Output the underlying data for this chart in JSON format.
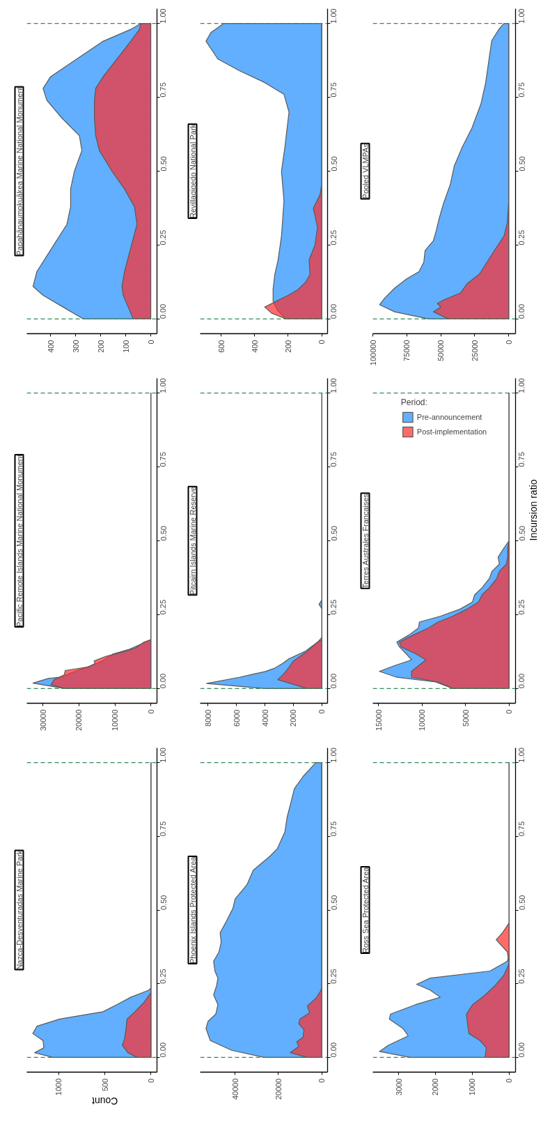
{
  "chart_data": [
    {
      "type": "area",
      "title": "Papahānaumokuākea Marine National Monument",
      "orientation": "horizontal",
      "xlim": [
        495,
        -25
      ],
      "xticks": [
        0,
        100,
        200,
        300,
        400
      ],
      "ylim": [
        -0.05,
        1.05
      ],
      "yticks": [
        {
          "value": 0,
          "label": "0.00"
        },
        {
          "value": 0.25,
          "label": "0.25"
        },
        {
          "value": 0.5,
          "label": "0.50"
        },
        {
          "value": 0.75,
          "label": "0.75"
        },
        {
          "value": 1,
          "label": "1.00"
        }
      ],
      "ref_lines": [
        {
          "axis": "y",
          "value": 0,
          "color": "#2e8b57",
          "line_style": "dashed"
        },
        {
          "axis": "y",
          "value": 1,
          "color": "#2e8b57",
          "line_style": "dashed"
        }
      ],
      "series": [
        {
          "color": "#61affe",
          "x": [
            0,
            0.04,
            0.08,
            0.11,
            0.16,
            0.24,
            0.32,
            0.38,
            0.44,
            0.5,
            0.57,
            0.62,
            0.68,
            0.74,
            0.78,
            0.82,
            0.88,
            0.94,
            0.98,
            1.0
          ],
          "values": [
            270,
            350,
            430,
            470,
            455,
            395,
            335,
            320,
            320,
            305,
            275,
            285,
            355,
            415,
            430,
            400,
            295,
            190,
            80,
            40
          ]
        },
        {
          "color": "#ff2c2c",
          "x": [
            0,
            0.04,
            0.08,
            0.11,
            0.16,
            0.24,
            0.32,
            0.38,
            0.44,
            0.5,
            0.57,
            0.62,
            0.68,
            0.74,
            0.78,
            0.82,
            0.88,
            0.94,
            0.98,
            1.0
          ],
          "values": [
            70,
            90,
            110,
            115,
            105,
            80,
            55,
            65,
            105,
            155,
            205,
            220,
            225,
            225,
            220,
            190,
            135,
            80,
            45,
            40
          ]
        }
      ]
    },
    {
      "type": "area",
      "title": "Revillagigedo National Park",
      "orientation": "horizontal",
      "xlim": [
        725,
        -35
      ],
      "xticks": [
        0,
        200,
        400,
        600
      ],
      "ylim": [
        -0.05,
        1.05
      ],
      "yticks": [
        {
          "value": 0,
          "label": "0.00"
        },
        {
          "value": 0.25,
          "label": "0.25"
        },
        {
          "value": 0.5,
          "label": "0.50"
        },
        {
          "value": 0.75,
          "label": "0.75"
        },
        {
          "value": 1,
          "label": "1.00"
        }
      ],
      "ref_lines": [
        {
          "axis": "y",
          "value": 0,
          "color": "#2e8b57",
          "line_style": "dashed"
        },
        {
          "axis": "y",
          "value": 1,
          "color": "#2e8b57",
          "line_style": "dashed"
        }
      ],
      "series": [
        {
          "color": "#61affe",
          "x": [
            0,
            0.03,
            0.06,
            0.1,
            0.15,
            0.2,
            0.28,
            0.4,
            0.5,
            0.58,
            0.7,
            0.76,
            0.8,
            0.84,
            0.88,
            0.94,
            0.97,
            1.0
          ],
          "values": [
            215,
            265,
            290,
            290,
            280,
            260,
            240,
            225,
            240,
            220,
            195,
            225,
            340,
            490,
            620,
            690,
            660,
            585
          ]
        },
        {
          "color": "#ff2c2c",
          "x": [
            0,
            0.02,
            0.04,
            0.06,
            0.08,
            0.1,
            0.125,
            0.15,
            0.2,
            0.25,
            0.31,
            0.375,
            0.42,
            0.455,
            1.0
          ],
          "values": [
            215,
            300,
            340,
            270,
            200,
            140,
            95,
            70,
            75,
            40,
            25,
            50,
            10,
            0,
            0
          ]
        }
      ]
    },
    {
      "type": "area",
      "title": "Pooled VLMPAs",
      "orientation": "horizontal",
      "xlim": [
        100000,
        -5000
      ],
      "xticks": [
        0,
        25000,
        50000,
        75000,
        100000
      ],
      "ylim": [
        -0.05,
        1.05
      ],
      "yticks": [
        {
          "value": 0,
          "label": "0.00"
        },
        {
          "value": 0.25,
          "label": "0.25"
        },
        {
          "value": 0.5,
          "label": "0.50"
        },
        {
          "value": 0.75,
          "label": "0.75"
        },
        {
          "value": 1,
          "label": "1.00"
        }
      ],
      "ref_lines": [
        {
          "axis": "y",
          "value": 0,
          "color": "#2e8b57",
          "line_style": "dashed"
        },
        {
          "axis": "y",
          "value": 1,
          "color": "#2e8b57",
          "line_style": "dashed"
        }
      ],
      "series": [
        {
          "color": "#61affe",
          "x": [
            0,
            0.024,
            0.048,
            0.072,
            0.104,
            0.136,
            0.16,
            0.192,
            0.232,
            0.264,
            0.296,
            0.343,
            0.391,
            0.455,
            0.519,
            0.583,
            0.647,
            0.727,
            0.799,
            0.879,
            0.942,
            0.982,
            1.0
          ],
          "values": [
            59000,
            84000,
            95000,
            91000,
            84000,
            75000,
            66000,
            62500,
            61500,
            55500,
            53500,
            51000,
            48000,
            43000,
            40000,
            34000,
            27000,
            20500,
            17000,
            14500,
            12500,
            7000,
            3500
          ]
        },
        {
          "color": "#ff2c2c",
          "x": [
            0,
            0.024,
            0.04,
            0.052,
            0.064,
            0.088,
            0.12,
            0.152,
            0.192,
            0.232,
            0.28,
            0.327,
            0.4,
            1.0
          ],
          "values": [
            44500,
            55500,
            50000,
            52500,
            48000,
            35500,
            30500,
            21500,
            16000,
            10500,
            3500,
            1000,
            0,
            0
          ]
        }
      ]
    },
    {
      "type": "area",
      "title": "Pacific Remote Islands Marine National Monument",
      "orientation": "horizontal",
      "xlim": [
        34500,
        -1700
      ],
      "xticks": [
        0,
        10000,
        20000,
        30000
      ],
      "ylim": [
        -0.05,
        1.05
      ],
      "yticks": [
        {
          "value": 0,
          "label": "0.00"
        },
        {
          "value": 0.25,
          "label": "0.25"
        },
        {
          "value": 0.5,
          "label": "0.50"
        },
        {
          "value": 0.75,
          "label": "0.75"
        },
        {
          "value": 1,
          "label": "1.00"
        }
      ],
      "ref_lines": [
        {
          "axis": "y",
          "value": 0,
          "color": "#2e8b57",
          "line_style": "dashed"
        },
        {
          "axis": "y",
          "value": 1,
          "color": "#2e8b57",
          "line_style": "dashed"
        }
      ],
      "series": [
        {
          "color": "#61affe",
          "x": [
            0,
            0.018,
            0.034,
            0.038,
            0.054,
            0.069,
            0.085,
            0.093,
            0.117,
            0.133,
            0.149,
            0.165,
            1.0
          ],
          "values": [
            24000,
            32800,
            28500,
            25000,
            22000,
            18500,
            15000,
            13500,
            10500,
            6000,
            3000,
            0,
            0
          ]
        },
        {
          "color": "#ff2c2c",
          "x": [
            0,
            0.013,
            0.03,
            0.046,
            0.061,
            0.073,
            0.085,
            0.093,
            0.109,
            0.125,
            0.137,
            0.157,
            0.165,
            1.0
          ],
          "values": [
            24000,
            27800,
            26900,
            24100,
            23800,
            17300,
            15500,
            15800,
            12400,
            7400,
            4300,
            1900,
            0,
            0
          ]
        }
      ]
    },
    {
      "type": "area",
      "title": "Pitcairn Islands Marine Reserve",
      "orientation": "horizontal",
      "xlim": [
        8550,
        -400
      ],
      "xticks": [
        0,
        2000,
        4000,
        6000,
        8000
      ],
      "ylim": [
        -0.05,
        1.05
      ],
      "yticks": [
        {
          "value": 0,
          "label": "0.00"
        },
        {
          "value": 0.25,
          "label": "0.25"
        },
        {
          "value": 0.5,
          "label": "0.50"
        },
        {
          "value": 0.75,
          "label": "0.75"
        },
        {
          "value": 1,
          "label": "1.00"
        }
      ],
      "ref_lines": [
        {
          "axis": "y",
          "value": 0,
          "color": "#2e8b57",
          "line_style": "dashed"
        },
        {
          "axis": "y",
          "value": 1,
          "color": "#2e8b57",
          "line_style": "dashed"
        }
      ],
      "series": [
        {
          "color": "#61affe",
          "x": [
            0,
            0.017,
            0.038,
            0.049,
            0.057,
            0.069,
            0.085,
            0.101,
            0.125,
            0.157,
            0.173,
            0.27,
            0.285,
            0.3,
            1.0
          ],
          "values": [
            4000,
            8100,
            5800,
            4800,
            4000,
            3300,
            2750,
            2300,
            1200,
            300,
            0,
            0,
            200,
            0,
            0
          ]
        },
        {
          "color": "#ff2c2c",
          "x": [
            0,
            0.03,
            0.046,
            0.054,
            0.069,
            0.093,
            0.125,
            0.157,
            0.165,
            1.0
          ],
          "values": [
            1050,
            3100,
            2750,
            2600,
            2350,
            2000,
            1050,
            300,
            0,
            0
          ]
        }
      ]
    },
    {
      "type": "area",
      "title": "Terres Australes Françaises",
      "orientation": "horizontal",
      "ylabel": "Incursion ratio",
      "legend": "right",
      "legend_title": "Period:",
      "xlim": [
        15650,
        -750
      ],
      "xticks": [
        0,
        5000,
        10000,
        15000
      ],
      "ylim": [
        -0.05,
        1.05
      ],
      "yticks": [
        {
          "value": 0,
          "label": "0.00"
        },
        {
          "value": 0.25,
          "label": "0.25"
        },
        {
          "value": 0.5,
          "label": "0.50"
        },
        {
          "value": 0.75,
          "label": "0.75"
        },
        {
          "value": 1,
          "label": "1.00"
        }
      ],
      "ref_lines": [
        {
          "axis": "y",
          "value": 0,
          "color": "#2e8b57",
          "line_style": "dashed"
        },
        {
          "axis": "y",
          "value": 1,
          "color": "#2e8b57",
          "line_style": "dashed"
        }
      ],
      "series": [
        {
          "name": "Pre-announcement",
          "color": "#61affe",
          "x": [
            0,
            0.022,
            0.038,
            0.058,
            0.077,
            0.097,
            0.117,
            0.141,
            0.157,
            0.181,
            0.205,
            0.225,
            0.245,
            0.269,
            0.293,
            0.317,
            0.341,
            0.373,
            0.397,
            0.421,
            0.445,
            0.477,
            0.5,
            1.0
          ],
          "values": [
            6450,
            8450,
            12900,
            14900,
            13200,
            11200,
            11800,
            12600,
            12900,
            11500,
            10400,
            10300,
            7850,
            5600,
            4200,
            3950,
            3100,
            2250,
            1950,
            1100,
            1250,
            550,
            0,
            0
          ]
        },
        {
          "name": "Post-implementation",
          "color": "#ff2c2c",
          "x": [
            0,
            0.022,
            0.038,
            0.058,
            0.077,
            0.097,
            0.117,
            0.141,
            0.157,
            0.181,
            0.205,
            0.225,
            0.245,
            0.269,
            0.293,
            0.317,
            0.341,
            0.373,
            0.397,
            0.421,
            0.445,
            0.477,
            0.5,
            1.0
          ],
          "values": [
            6450,
            8150,
            11200,
            11200,
            10400,
            9550,
            10700,
            12400,
            12600,
            11000,
            9250,
            8150,
            6450,
            4800,
            3500,
            3100,
            2250,
            1400,
            1100,
            300,
            150,
            150,
            0,
            0
          ]
        }
      ]
    },
    {
      "type": "area",
      "title": "Nazca-Desventuradas Marine Park",
      "orientation": "horizontal",
      "xlabel": "Count",
      "xlim": [
        1345,
        -65
      ],
      "xticks": [
        0,
        500,
        1000
      ],
      "ylim": [
        -0.05,
        1.05
      ],
      "yticks": [
        {
          "value": 0,
          "label": "0.00"
        },
        {
          "value": 0.25,
          "label": "0.25"
        },
        {
          "value": 0.5,
          "label": "0.50"
        },
        {
          "value": 0.75,
          "label": "0.75"
        },
        {
          "value": 1,
          "label": "1.00"
        }
      ],
      "ref_lines": [
        {
          "axis": "y",
          "value": 0,
          "color": "#2e8b57",
          "line_style": "dashed"
        },
        {
          "axis": "y",
          "value": 1,
          "color": "#2e8b57",
          "line_style": "dashed"
        }
      ],
      "series": [
        {
          "color": "#61affe",
          "x": [
            0,
            0.016,
            0.033,
            0.057,
            0.081,
            0.106,
            0.13,
            0.155,
            0.179,
            0.204,
            0.228,
            0.236,
            1.0
          ],
          "values": [
            1060,
            1260,
            1160,
            1170,
            1280,
            1235,
            990,
            520,
            370,
            220,
            25,
            0,
            0
          ]
        },
        {
          "color": "#ff2c2c",
          "x": [
            0,
            0.016,
            0.041,
            0.065,
            0.098,
            0.13,
            0.155,
            0.187,
            0.22,
            1.0
          ],
          "values": [
            150,
            250,
            310,
            285,
            270,
            260,
            175,
            75,
            0,
            0
          ]
        }
      ]
    },
    {
      "type": "area",
      "title": "Phoenix Islands Protected Area",
      "orientation": "horizontal",
      "xlim": [
        56100,
        -2700
      ],
      "xticks": [
        0,
        20000,
        40000
      ],
      "ylim": [
        -0.05,
        1.05
      ],
      "yticks": [
        {
          "value": 0,
          "label": "0.00"
        },
        {
          "value": 0.25,
          "label": "0.25"
        },
        {
          "value": 0.5,
          "label": "0.50"
        },
        {
          "value": 0.75,
          "label": "0.75"
        },
        {
          "value": 1,
          "label": "1.00"
        }
      ],
      "ref_lines": [
        {
          "axis": "y",
          "value": 0,
          "color": "#2e8b57",
          "line_style": "dashed"
        },
        {
          "axis": "y",
          "value": 1,
          "color": "#2e8b57",
          "line_style": "dashed"
        }
      ],
      "series": [
        {
          "color": "#61affe",
          "x": [
            0,
            0.024,
            0.057,
            0.098,
            0.122,
            0.147,
            0.179,
            0.212,
            0.244,
            0.269,
            0.293,
            0.326,
            0.358,
            0.391,
            0.423,
            0.456,
            0.505,
            0.537,
            0.586,
            0.635,
            0.684,
            0.708,
            0.765,
            0.814,
            0.871,
            0.912,
            0.953,
            1.0
          ],
          "values": [
            26600,
            41500,
            51400,
            53400,
            52500,
            48900,
            47900,
            49900,
            48500,
            47900,
            49300,
            49900,
            47400,
            46400,
            46900,
            44400,
            41000,
            40000,
            34500,
            31600,
            23700,
            20500,
            17000,
            16000,
            14000,
            12600,
            8600,
            2700
          ]
        },
        {
          "color": "#ff2c2c",
          "x": [
            0,
            0.016,
            0.037,
            0.053,
            0.069,
            0.094,
            0.114,
            0.13,
            0.151,
            0.175,
            0.2,
            0.224,
            0.236,
            1.0
          ],
          "values": [
            6600,
            14500,
            10600,
            11500,
            8600,
            8200,
            10600,
            10100,
            5600,
            6600,
            2700,
            600,
            0,
            0
          ]
        }
      ]
    },
    {
      "type": "area",
      "title": "Ross Sea Protected Area",
      "orientation": "horizontal",
      "xlim": [
        3700,
        -175
      ],
      "xticks": [
        0,
        1000,
        2000,
        3000
      ],
      "ylim": [
        -0.05,
        1.05
      ],
      "yticks": [
        {
          "value": 0,
          "label": "0.00"
        },
        {
          "value": 0.25,
          "label": "0.25"
        },
        {
          "value": 0.5,
          "label": "0.50"
        },
        {
          "value": 0.75,
          "label": "0.75"
        },
        {
          "value": 1,
          "label": "1.00"
        }
      ],
      "ref_lines": [
        {
          "axis": "y",
          "value": 0,
          "color": "#2e8b57",
          "line_style": "dashed"
        },
        {
          "axis": "y",
          "value": 1,
          "color": "#2e8b57",
          "line_style": "dashed"
        }
      ],
      "series": [
        {
          "color": "#61affe",
          "x": [
            0,
            0.02,
            0.041,
            0.073,
            0.098,
            0.13,
            0.147,
            0.179,
            0.204,
            0.228,
            0.248,
            0.269,
            0.293,
            0.326,
            0.342,
            1.0
          ],
          "values": [
            2680,
            3520,
            3280,
            2740,
            2880,
            3250,
            3220,
            2540,
            1870,
            2140,
            2510,
            2140,
            520,
            50,
            0,
            0
          ]
        },
        {
          "color": "#ff2c2c",
          "x": [
            0,
            0.033,
            0.057,
            0.081,
            0.114,
            0.147,
            0.179,
            0.212,
            0.244,
            0.277,
            0.318,
            0.358,
            0.399,
            0.423,
            0.456,
            1.0
          ],
          "values": [
            650,
            620,
            790,
            1090,
            1130,
            1160,
            990,
            650,
            380,
            150,
            0,
            50,
            350,
            180,
            0,
            0
          ]
        }
      ]
    }
  ]
}
